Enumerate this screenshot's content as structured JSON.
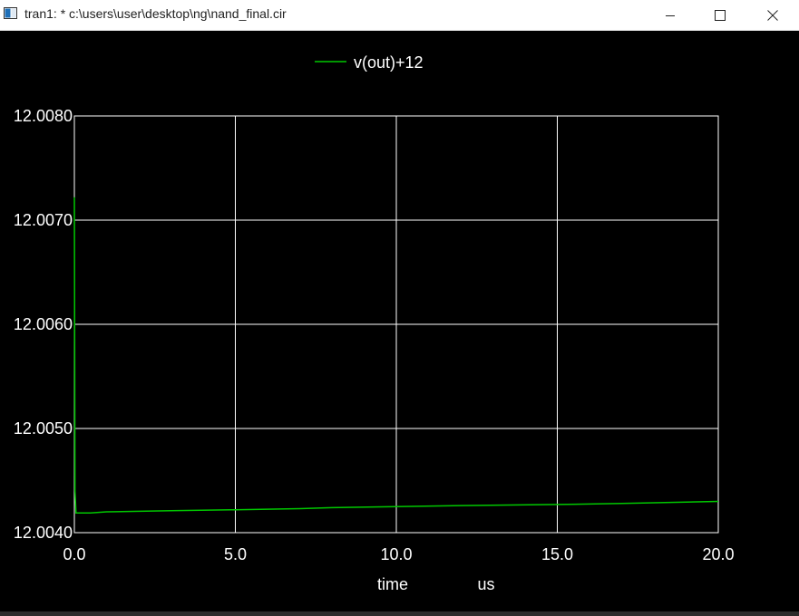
{
  "window": {
    "title": "tran1: * c:\\users\\user\\desktop\\ng\\nand_final.cir",
    "minimize_icon": "minimize-icon",
    "maximize_icon": "maximize-icon",
    "close_icon": "close-icon"
  },
  "chart_data": {
    "type": "line",
    "title": "",
    "xlabel": "time",
    "xunit": "us",
    "ylabel": "",
    "xlim": [
      0,
      20
    ],
    "ylim": [
      12.004,
      12.008
    ],
    "x_ticks": [
      "0.0",
      "5.0",
      "10.0",
      "15.0",
      "20.0"
    ],
    "y_ticks": [
      "12.0040",
      "12.0050",
      "12.0060",
      "12.0070",
      "12.0080"
    ],
    "grid": true,
    "legend_position": "top-center",
    "background": "#000000",
    "axis_color": "#ffffff",
    "series": [
      {
        "name": "v(out)+12",
        "color": "#00c800",
        "x": [
          0,
          0.02,
          0.05,
          0.5,
          1,
          3,
          5,
          7,
          8,
          10,
          12,
          15,
          17,
          20
        ],
        "values": [
          12.00722,
          12.0044,
          12.00419,
          12.00419,
          12.0042,
          12.00421,
          12.00422,
          12.00423,
          12.00424,
          12.00425,
          12.00426,
          12.00427,
          12.00428,
          12.0043
        ]
      }
    ]
  }
}
